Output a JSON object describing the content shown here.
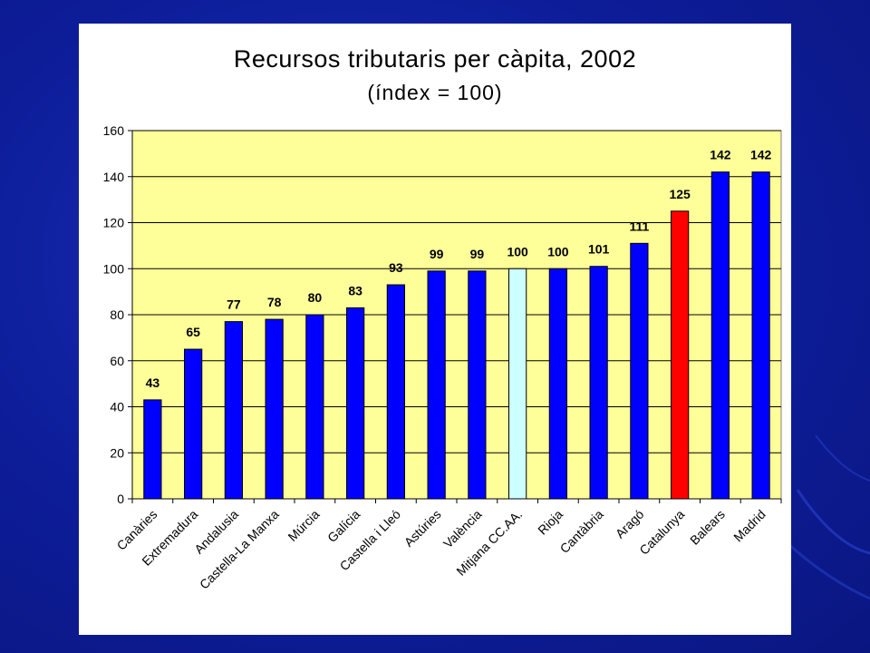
{
  "colors": {
    "background": "#0f1fa0",
    "plot_area": "#ffff99",
    "bar_default": "#0000ff",
    "bar_average": "#ccffff",
    "bar_highlight": "#ff0000"
  },
  "chart_data": {
    "type": "bar",
    "title": "Recursos tributaris per càpita, 2002",
    "subtitle": "(índex = 100)",
    "xlabel": "",
    "ylabel": "",
    "ylim": [
      0,
      160
    ],
    "y_ticks": [
      "0",
      "20",
      "40",
      "60",
      "80",
      "100",
      "120",
      "140",
      "160"
    ],
    "grid": true,
    "legend": "none",
    "categories": [
      "Canàries",
      "Extremadura",
      "Andalusia",
      "Castella-La Manxa",
      "Múrcia",
      "Galícia",
      "Castella i Lleó",
      "Astúries",
      "València",
      "Mitjana CC.AA.",
      "Rioja",
      "Cantàbria",
      "Aragó",
      "Catalunya",
      "Balears",
      "Madrid"
    ],
    "values": [
      43,
      65,
      77,
      78,
      80,
      83,
      93,
      99,
      99,
      100,
      100,
      101,
      111,
      125,
      142,
      142
    ],
    "value_labels": [
      "43",
      "65",
      "77",
      "78",
      "80",
      "83",
      "93",
      "99",
      "99",
      "100",
      "100",
      "101",
      "111",
      "125",
      "142",
      "142"
    ],
    "bar_colors": [
      "#0000ff",
      "#0000ff",
      "#0000ff",
      "#0000ff",
      "#0000ff",
      "#0000ff",
      "#0000ff",
      "#0000ff",
      "#0000ff",
      "#ccffff",
      "#0000ff",
      "#0000ff",
      "#0000ff",
      "#ff0000",
      "#0000ff",
      "#0000ff"
    ]
  }
}
